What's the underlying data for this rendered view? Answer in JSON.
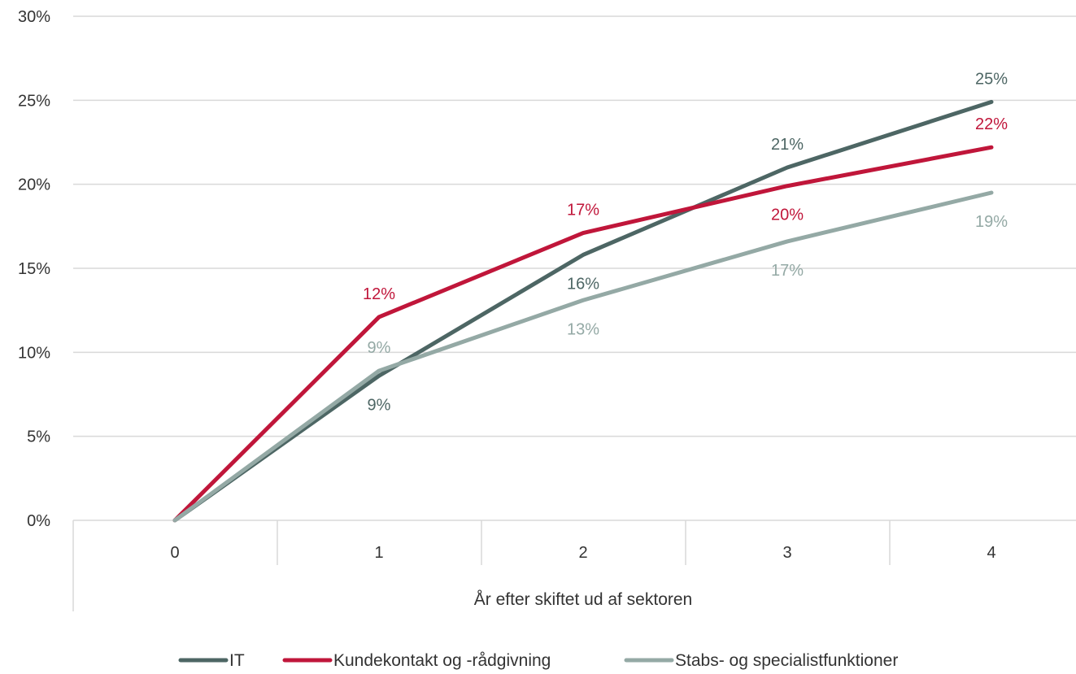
{
  "chart_data": {
    "type": "line",
    "xlabel": "År efter skiftet ud af sektoren",
    "ylabel": "",
    "x": [
      "0",
      "1",
      "2",
      "3",
      "4"
    ],
    "ylim": [
      0,
      30
    ],
    "yticks": [
      0,
      5,
      10,
      15,
      20,
      25,
      30
    ],
    "ytick_labels": [
      "0%",
      "5%",
      "10%",
      "15%",
      "20%",
      "25%",
      "30%"
    ],
    "grid": "horizontal",
    "legend_position": "bottom",
    "series": [
      {
        "name": "IT",
        "color": "#4d6664",
        "values": [
          0,
          8.6,
          15.8,
          21.0,
          24.9
        ],
        "labels": [
          "",
          "9%",
          "16%",
          "21%",
          "25%"
        ],
        "label_pos": [
          "",
          "below",
          "below",
          "above",
          "above"
        ]
      },
      {
        "name": "Kundekontakt og -rådgivning",
        "color": "#c0163a",
        "values": [
          0,
          12.1,
          17.1,
          19.9,
          22.2
        ],
        "labels": [
          "",
          "12%",
          "17%",
          "20%",
          "22%"
        ],
        "label_pos": [
          "",
          "above",
          "above",
          "below",
          "above"
        ]
      },
      {
        "name": "Stabs- og specialistfunktioner",
        "color": "#94a9a5",
        "values": [
          0,
          8.9,
          13.1,
          16.6,
          19.5
        ],
        "labels": [
          "",
          "9%",
          "13%",
          "17%",
          "19%"
        ],
        "label_pos": [
          "",
          "above",
          "below",
          "below",
          "below"
        ]
      }
    ]
  }
}
